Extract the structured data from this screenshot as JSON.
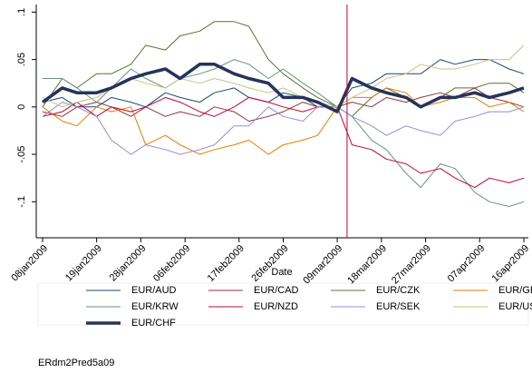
{
  "chart_data": {
    "type": "line",
    "x_label": "Date",
    "note": "ERdm2Pred5a09",
    "x": [
      "2009-01-08",
      "2009-01-12",
      "2009-01-15",
      "2009-01-19",
      "2009-01-22",
      "2009-01-26",
      "2009-01-29",
      "2009-02-02",
      "2009-02-05",
      "2009-02-09",
      "2009-02-12",
      "2009-02-16",
      "2009-02-19",
      "2009-02-23",
      "2009-02-26",
      "2009-03-02",
      "2009-03-05",
      "2009-03-09",
      "2009-03-12",
      "2009-03-16",
      "2009-03-19",
      "2009-03-23",
      "2009-03-26",
      "2009-03-30",
      "2009-04-02",
      "2009-04-06",
      "2009-04-09",
      "2009-04-13",
      "2009-04-16"
    ],
    "xlim": [
      "2009-01-08",
      "2009-04-16"
    ],
    "xticks": [
      {
        "value": "2009-01-08",
        "label": "08jan2009"
      },
      {
        "value": "2009-01-19",
        "label": "19jan2009"
      },
      {
        "value": "2009-01-28",
        "label": "28jan2009"
      },
      {
        "value": "2009-02-06",
        "label": "06feb2009"
      },
      {
        "value": "2009-02-17",
        "label": "17feb2009"
      },
      {
        "value": "2009-02-26",
        "label": "26feb2009"
      },
      {
        "value": "2009-03-09",
        "label": "09mar2009"
      },
      {
        "value": "2009-03-18",
        "label": "18mar2009"
      },
      {
        "value": "2009-03-27",
        "label": "27mar2009"
      },
      {
        "value": "2009-04-07",
        "label": "07apr2009"
      },
      {
        "value": "2009-04-16",
        "label": "16apr2009"
      }
    ],
    "ylim": [
      -0.138,
      0.108
    ],
    "yticks": [
      {
        "value": 0.1,
        "label": ".1"
      },
      {
        "value": 0.05,
        "label": ".05"
      },
      0,
      {
        "value": -0.05,
        "label": "-.05"
      },
      {
        "value": -0.1,
        "label": "-.1"
      }
    ],
    "vline": "2009-03-11",
    "vline_color": "#c10534",
    "series": [
      {
        "name": "EUR/AUD",
        "color": "#1a476f",
        "width": 1,
        "values": [
          0.005,
          0.01,
          0.0,
          0.0,
          0.01,
          0.005,
          0.0,
          0.015,
          0.01,
          0.005,
          0.015,
          0.02,
          0.01,
          0.005,
          0.015,
          0.01,
          0.0,
          0.0,
          0.02,
          0.025,
          0.035,
          0.035,
          0.035,
          0.05,
          0.045,
          0.05,
          0.05,
          0.04,
          0.035
        ]
      },
      {
        "name": "EUR/CAD",
        "color": "#90353b",
        "width": 1,
        "values": [
          -0.005,
          -0.01,
          0.0,
          0.005,
          0.0,
          -0.01,
          0.0,
          -0.01,
          -0.005,
          -0.01,
          0.0,
          -0.005,
          -0.015,
          -0.01,
          -0.005,
          0.005,
          0.0,
          0.0,
          0.005,
          0.0,
          0.01,
          0.005,
          0.01,
          0.015,
          0.01,
          0.02,
          0.01,
          0.005,
          0.0
        ]
      },
      {
        "name": "EUR/CZK",
        "color": "#55752f",
        "width": 1,
        "values": [
          0.0,
          0.03,
          0.02,
          0.035,
          0.035,
          0.045,
          0.065,
          0.06,
          0.075,
          0.08,
          0.09,
          0.09,
          0.085,
          0.05,
          0.035,
          0.02,
          0.01,
          0.0,
          -0.01,
          0.01,
          0.02,
          0.01,
          0.0,
          0.01,
          0.02,
          0.02,
          0.025,
          0.025,
          0.015
        ]
      },
      {
        "name": "EUR/GBP",
        "color": "#e37e00",
        "width": 1,
        "values": [
          0.0,
          -0.015,
          -0.02,
          0.0,
          -0.005,
          0.0,
          -0.04,
          -0.03,
          -0.04,
          -0.05,
          -0.045,
          -0.04,
          -0.035,
          -0.05,
          -0.04,
          -0.035,
          -0.03,
          0.0,
          0.01,
          0.01,
          0.02,
          0.015,
          0.0,
          0.005,
          0.01,
          0.01,
          0.0,
          0.005,
          -0.005
        ]
      },
      {
        "name": "EUR/KRW",
        "color": "#6e8e84",
        "width": 1,
        "values": [
          0.03,
          0.03,
          0.02,
          0.005,
          0.02,
          0.04,
          0.03,
          0.02,
          0.03,
          0.035,
          0.04,
          0.05,
          0.045,
          0.03,
          0.04,
          0.025,
          0.015,
          0.0,
          -0.01,
          -0.035,
          -0.045,
          -0.07,
          -0.085,
          -0.06,
          -0.065,
          -0.09,
          -0.1,
          -0.105,
          -0.1
        ]
      },
      {
        "name": "EUR/NZD",
        "color": "#c10534",
        "width": 1,
        "values": [
          -0.01,
          -0.005,
          0.005,
          -0.01,
          0.0,
          -0.005,
          0.0,
          0.01,
          0.005,
          -0.005,
          -0.01,
          0.0,
          0.01,
          0.005,
          0.0,
          -0.005,
          0.0,
          0.0,
          -0.04,
          -0.045,
          -0.055,
          -0.06,
          -0.07,
          -0.065,
          -0.075,
          -0.085,
          -0.075,
          -0.08,
          -0.075
        ]
      },
      {
        "name": "EUR/SEK",
        "color": "#938dd2",
        "width": 1,
        "values": [
          -0.01,
          0.005,
          0.0,
          -0.01,
          -0.035,
          -0.05,
          -0.04,
          -0.045,
          -0.05,
          -0.045,
          -0.04,
          -0.02,
          -0.02,
          0.0,
          -0.01,
          -0.015,
          0.0,
          0.0,
          -0.01,
          -0.02,
          -0.03,
          -0.02,
          -0.025,
          -0.03,
          -0.015,
          -0.01,
          -0.005,
          -0.005,
          0.0
        ]
      },
      {
        "name": "EUR/USD",
        "color": "#cac27e",
        "width": 1,
        "values": [
          0.01,
          0.0,
          0.005,
          0.01,
          0.02,
          0.03,
          0.025,
          0.02,
          0.03,
          0.025,
          0.03,
          0.025,
          0.02,
          0.015,
          0.02,
          0.01,
          0.005,
          0.0,
          0.01,
          0.02,
          0.03,
          0.035,
          0.045,
          0.04,
          0.04,
          0.045,
          0.05,
          0.05,
          0.065
        ]
      },
      {
        "name": "EUR/CHF",
        "color": "#26335a",
        "width": 3.5,
        "values": [
          0.005,
          0.02,
          0.015,
          0.015,
          0.02,
          0.03,
          0.035,
          0.04,
          0.03,
          0.045,
          0.045,
          0.035,
          0.03,
          0.025,
          0.01,
          0.01,
          0.005,
          -0.005,
          0.03,
          0.02,
          0.015,
          0.01,
          0.0,
          0.01,
          0.01,
          0.015,
          0.01,
          0.015,
          0.02
        ]
      }
    ]
  }
}
